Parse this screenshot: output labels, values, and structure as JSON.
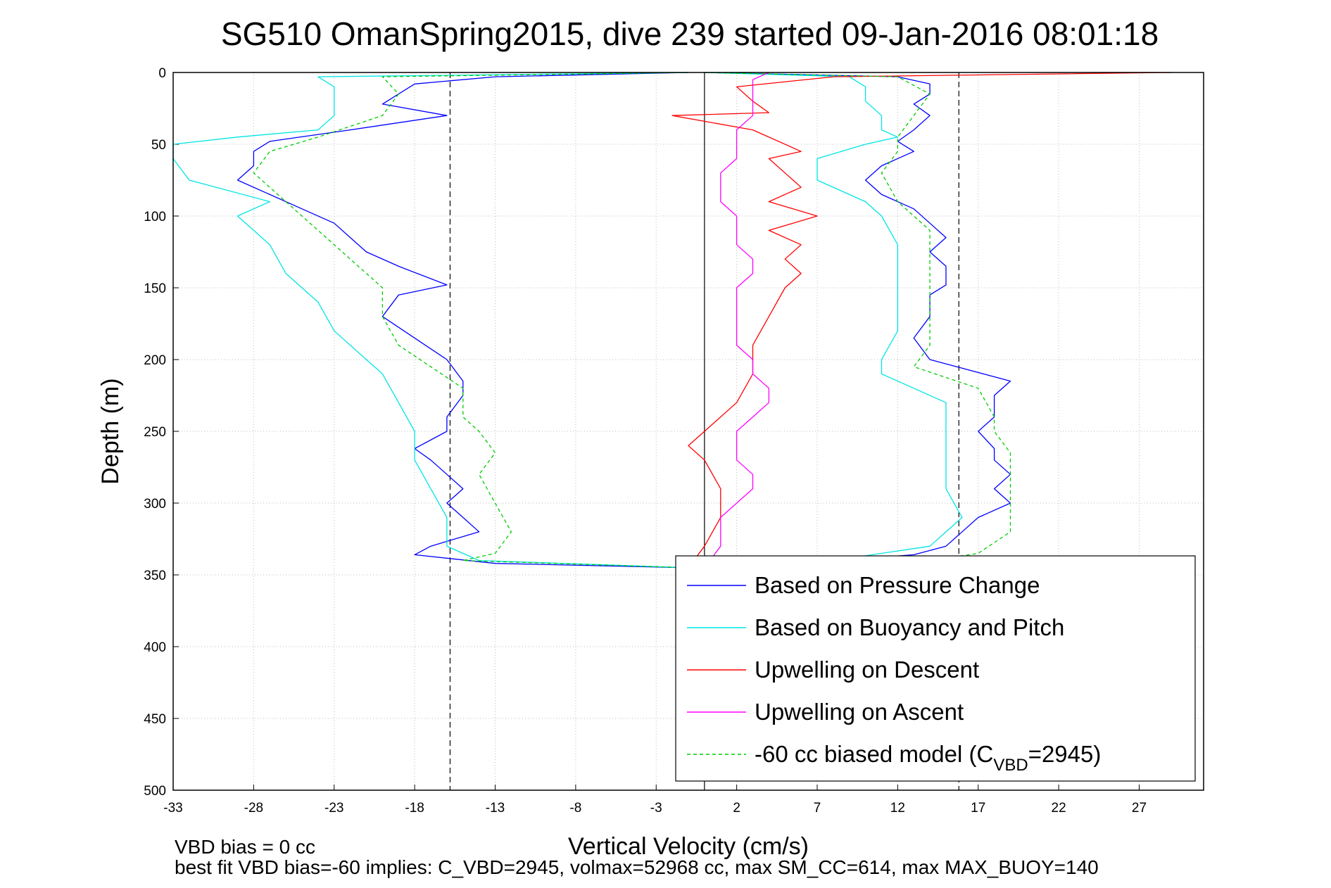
{
  "chart_data": {
    "type": "line",
    "title": "SG510 OmanSpring2015, dive 239 started 09-Jan-2016 08:01:18",
    "xlabel": "Vertical Velocity (cm/s)",
    "ylabel": "Depth (m)",
    "xlim": [
      -33,
      31
    ],
    "ylim": [
      0,
      500
    ],
    "y_reversed": true,
    "grid": true,
    "x_ticks": [
      -33,
      -28,
      -23,
      -18,
      -13,
      -8,
      -3,
      2,
      7,
      12,
      17,
      22,
      27
    ],
    "y_ticks": [
      0,
      50,
      100,
      150,
      200,
      250,
      300,
      350,
      400,
      450,
      500
    ],
    "reference_lines": [
      {
        "x": -15.8,
        "style": "dashed",
        "color": "#000000"
      },
      {
        "x": 0,
        "style": "solid",
        "color": "#000000"
      },
      {
        "x": 15.8,
        "style": "dashed",
        "color": "#000000"
      }
    ],
    "legend": {
      "position": "bottom-right",
      "entries": [
        {
          "label": "Based on Pressure Change"
        },
        {
          "label": "Based on Buoyancy and Pitch"
        },
        {
          "label": "Upwelling on Descent"
        },
        {
          "label": "Upwelling on Ascent"
        },
        {
          "label_before": "-60 cc biased model (C",
          "label_sub": "VBD",
          "label_after": "=2945)"
        }
      ]
    },
    "series": [
      {
        "id": "pressure",
        "color": "#0000ff",
        "dash": "",
        "depth": [
          0,
          3,
          8,
          15,
          22,
          30,
          40,
          48,
          55,
          65,
          75,
          85,
          95,
          105,
          115,
          125,
          135,
          148,
          155,
          170,
          185,
          200,
          215,
          225,
          240,
          250,
          262,
          270,
          280,
          290,
          300,
          310,
          320,
          330,
          336,
          342,
          345
        ],
        "descent": [
          -1,
          -13,
          -18,
          -19,
          -20,
          -16,
          -22,
          -27,
          -28,
          -28,
          -29,
          -27,
          -25,
          -23,
          -22,
          -21,
          -19,
          -16,
          -19,
          -20,
          -18,
          -16,
          -15,
          -15,
          -16,
          -16,
          -18,
          -17,
          -16,
          -15,
          -16,
          -15,
          -14,
          -17,
          -18,
          -13,
          -1
        ],
        "ascent": [
          0,
          12,
          14,
          14,
          13,
          14,
          13,
          12,
          13,
          11,
          10,
          11,
          13,
          14,
          15,
          14,
          15,
          15,
          14,
          14,
          13,
          14,
          19,
          18,
          18,
          17,
          18,
          18,
          19,
          18,
          19,
          17,
          16,
          15,
          13,
          6,
          2
        ]
      },
      {
        "id": "buoyancy",
        "color": "#00e5e5",
        "dash": "",
        "depth": [
          0,
          3,
          10,
          20,
          30,
          40,
          45,
          50,
          60,
          75,
          90,
          100,
          120,
          140,
          150,
          160,
          180,
          200,
          210,
          230,
          250,
          270,
          290,
          310,
          330,
          340,
          345
        ],
        "descent": [
          -1,
          -24,
          -23,
          -23,
          -23,
          -24,
          -29,
          -33,
          -33,
          -32,
          -27,
          -29,
          -27,
          -26,
          -25,
          -24,
          -23,
          -21,
          -20,
          -19,
          -18,
          -18,
          -17,
          -16,
          -16,
          -14,
          -1
        ],
        "ascent": [
          0,
          9,
          10,
          10,
          11,
          11,
          12,
          10,
          7,
          7,
          10,
          11,
          12,
          12,
          12,
          12,
          12,
          11,
          11,
          15,
          15,
          15,
          15,
          16,
          14,
          8,
          2
        ]
      },
      {
        "id": "upwelling-descent",
        "color": "#ff0000",
        "dash": "",
        "depth": [
          0,
          3,
          10,
          20,
          28,
          30,
          40,
          55,
          60,
          70,
          80,
          90,
          100,
          110,
          120,
          130,
          140,
          150,
          170,
          190,
          210,
          230,
          250,
          260,
          270,
          290,
          310,
          330,
          345
        ],
        "values": [
          29,
          8,
          2,
          3,
          4,
          -2,
          3,
          6,
          4,
          5,
          6,
          4,
          7,
          4,
          6,
          5,
          6,
          5,
          4,
          3,
          3,
          2,
          0,
          -1,
          0,
          1,
          1,
          0,
          -1
        ]
      },
      {
        "id": "upwelling-ascent",
        "color": "#ff00ff",
        "dash": "",
        "depth": [
          0,
          5,
          10,
          20,
          30,
          40,
          50,
          60,
          70,
          80,
          90,
          100,
          110,
          120,
          130,
          140,
          150,
          160,
          170,
          180,
          190,
          200,
          210,
          220,
          230,
          240,
          250,
          260,
          270,
          280,
          290,
          300,
          310,
          320,
          330,
          345
        ],
        "values": [
          4,
          3,
          3,
          3,
          3,
          2,
          2,
          2,
          1,
          1,
          1,
          2,
          2,
          2,
          3,
          3,
          2,
          2,
          2,
          2,
          2,
          3,
          3,
          4,
          4,
          3,
          2,
          2,
          2,
          3,
          3,
          2,
          1,
          1,
          1,
          0
        ]
      },
      {
        "id": "model",
        "color": "#00cc00",
        "dash": "5,4",
        "depth": [
          0,
          3,
          15,
          30,
          45,
          55,
          70,
          90,
          110,
          130,
          150,
          170,
          190,
          205,
          220,
          240,
          250,
          265,
          280,
          300,
          320,
          335,
          340,
          345
        ],
        "descent": [
          -1,
          -20,
          -19,
          -20,
          -24,
          -27,
          -28,
          -26,
          -24,
          -22,
          -20,
          -20,
          -19,
          -17,
          -15,
          -15,
          -14,
          -13,
          -14,
          -13,
          -12,
          -13,
          -15,
          -1
        ],
        "ascent": [
          0,
          12,
          14,
          13,
          12,
          12,
          11,
          12,
          14,
          14,
          14,
          14,
          14,
          13,
          17,
          18,
          18,
          19,
          19,
          19,
          19,
          17,
          14,
          2
        ]
      }
    ]
  },
  "footer": {
    "line1": "VBD bias = 0 cc",
    "line2": "best fit VBD bias=-60 implies: C_VBD=2945, volmax=52968 cc, max SM_CC=614, max MAX_BUOY=140"
  }
}
